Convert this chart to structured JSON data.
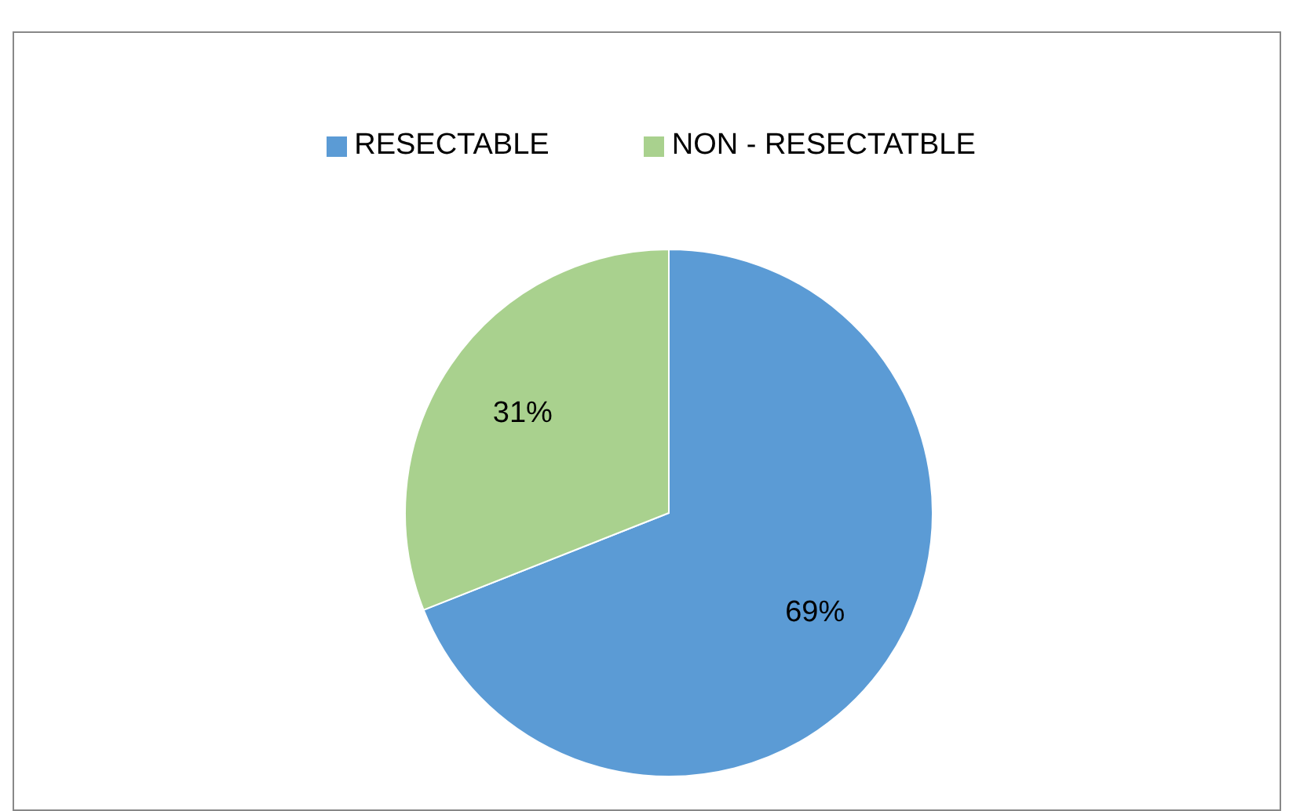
{
  "chart_data": {
    "type": "pie",
    "categories": [
      "RESECTABLE",
      "NON - RESECTATBLE"
    ],
    "values": [
      69,
      31
    ],
    "colors": [
      "#5b9bd5",
      "#a9d18e"
    ],
    "value_labels": [
      "69%",
      "31%"
    ],
    "legend": "top"
  }
}
